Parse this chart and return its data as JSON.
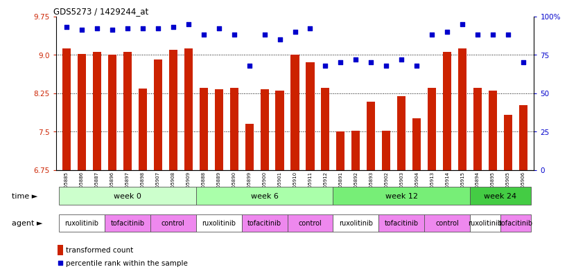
{
  "title": "GDS5273 / 1429244_at",
  "samples": [
    "GSM1105885",
    "GSM1105886",
    "GSM1105887",
    "GSM1105896",
    "GSM1105897",
    "GSM1105898",
    "GSM1105907",
    "GSM1105908",
    "GSM1105909",
    "GSM1105888",
    "GSM1105889",
    "GSM1105890",
    "GSM1105899",
    "GSM1105900",
    "GSM1105901",
    "GSM1105910",
    "GSM1105911",
    "GSM1105912",
    "GSM1105891",
    "GSM1105892",
    "GSM1105893",
    "GSM1105902",
    "GSM1105903",
    "GSM1105904",
    "GSM1105913",
    "GSM1105914",
    "GSM1105915",
    "GSM1105894",
    "GSM1105895",
    "GSM1105905",
    "GSM1105906"
  ],
  "bar_values": [
    9.12,
    9.02,
    9.06,
    9.0,
    9.06,
    8.34,
    8.9,
    9.09,
    9.12,
    8.35,
    8.32,
    8.35,
    7.65,
    8.32,
    8.3,
    9.0,
    8.85,
    8.35,
    7.5,
    7.52,
    8.08,
    7.52,
    8.19,
    7.76,
    8.35,
    9.05,
    9.12,
    8.35,
    8.3,
    7.82,
    8.02
  ],
  "percentile_values": [
    93,
    91,
    92,
    91,
    92,
    92,
    92,
    93,
    95,
    88,
    92,
    88,
    68,
    88,
    85,
    90,
    92,
    68,
    70,
    72,
    70,
    68,
    72,
    68,
    88,
    90,
    95,
    88,
    88,
    88,
    70
  ],
  "ylim_left": [
    6.75,
    9.75
  ],
  "ylim_right": [
    0,
    100
  ],
  "yticks_left": [
    6.75,
    7.5,
    8.25,
    9.0,
    9.75
  ],
  "yticks_right": [
    0,
    25,
    50,
    75,
    100
  ],
  "bar_color": "#cc2200",
  "dot_color": "#0000cc",
  "time_groups": [
    {
      "label": "week 0",
      "start": 0,
      "end": 9,
      "color": "#ccffcc"
    },
    {
      "label": "week 6",
      "start": 9,
      "end": 18,
      "color": "#aaffaa"
    },
    {
      "label": "week 12",
      "start": 18,
      "end": 27,
      "color": "#77ee77"
    },
    {
      "label": "week 24",
      "start": 27,
      "end": 31,
      "color": "#44cc44"
    }
  ],
  "agent_groups": [
    {
      "label": "ruxolitinib",
      "start": 0,
      "end": 3,
      "color": "#ffffff"
    },
    {
      "label": "tofacitinib",
      "start": 3,
      "end": 6,
      "color": "#ee88ee"
    },
    {
      "label": "control",
      "start": 6,
      "end": 9,
      "color": "#ee88ee"
    },
    {
      "label": "ruxolitinib",
      "start": 9,
      "end": 12,
      "color": "#ffffff"
    },
    {
      "label": "tofacitinib",
      "start": 12,
      "end": 15,
      "color": "#ee88ee"
    },
    {
      "label": "control",
      "start": 15,
      "end": 18,
      "color": "#ee88ee"
    },
    {
      "label": "ruxolitinib",
      "start": 18,
      "end": 21,
      "color": "#ffffff"
    },
    {
      "label": "tofacitinib",
      "start": 21,
      "end": 24,
      "color": "#ee88ee"
    },
    {
      "label": "control",
      "start": 24,
      "end": 27,
      "color": "#ee88ee"
    },
    {
      "label": "ruxolitinib",
      "start": 27,
      "end": 29,
      "color": "#ffffff"
    },
    {
      "label": "tofacitinib",
      "start": 29,
      "end": 31,
      "color": "#ee88ee"
    }
  ],
  "legend_bar_label": "transformed count",
  "legend_dot_label": "percentile rank within the sample",
  "time_label": "time",
  "agent_label": "agent",
  "bg_color": "#ffffff"
}
